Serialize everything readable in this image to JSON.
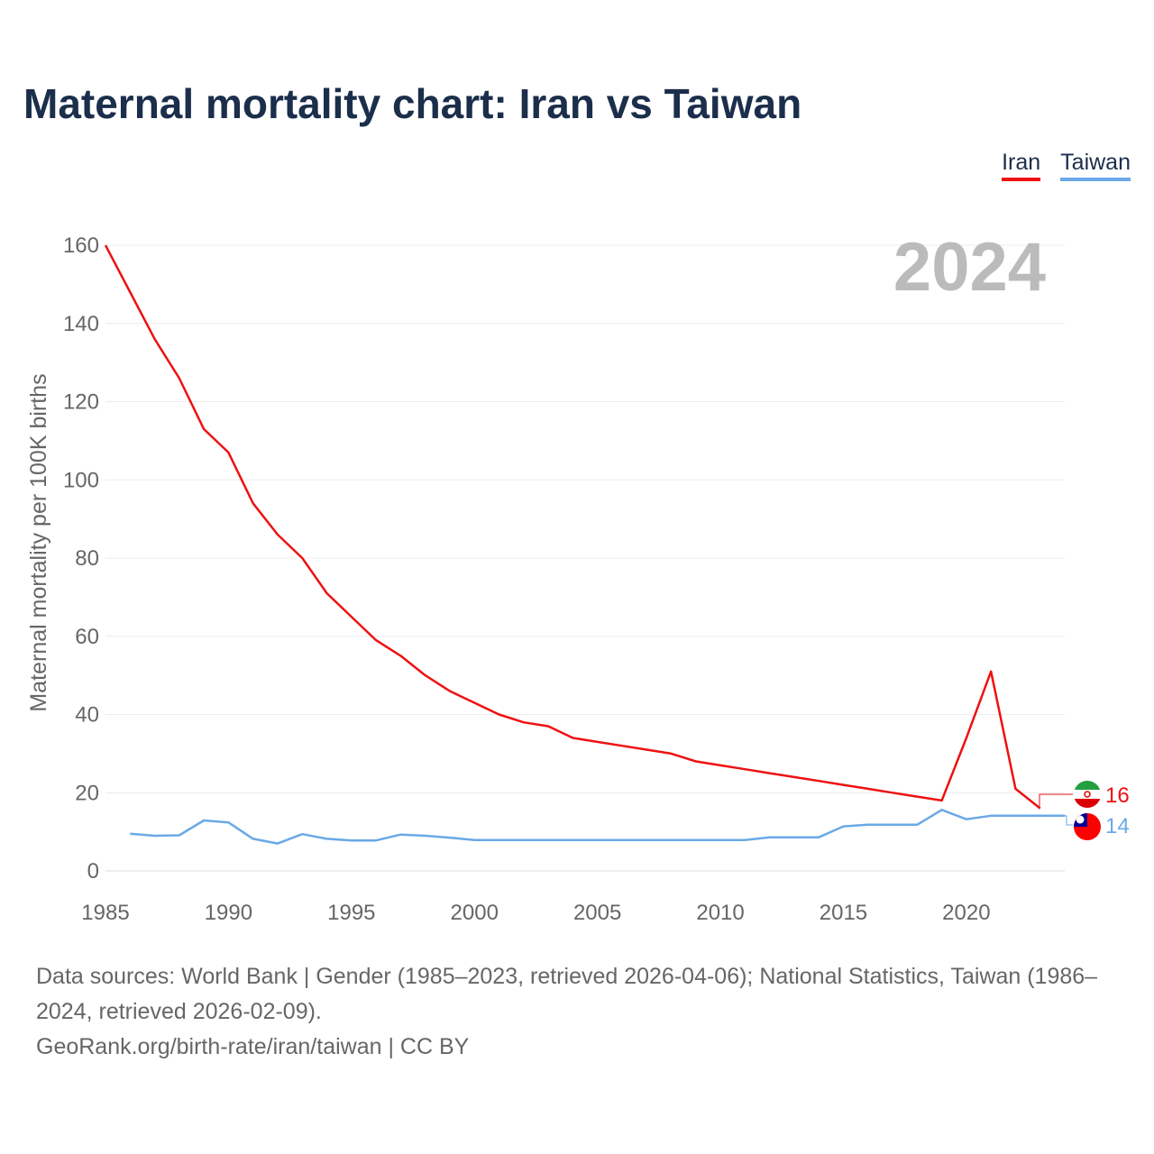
{
  "title": "Maternal mortality chart: Iran vs Taiwan",
  "legend": [
    {
      "name": "Iran",
      "color": "#ee1111"
    },
    {
      "name": "Taiwan",
      "color": "#6aa9e6"
    }
  ],
  "footer": {
    "sources": "Data sources: World Bank | Gender (1985–2023, retrieved 2026-04-06); National Statistics, Taiwan (1986–2024, retrieved 2026-02-09).",
    "credit": "GeoRank.org/birth-rate/iran/taiwan | CC BY"
  },
  "chart_data": {
    "type": "line",
    "title": "Maternal mortality chart: Iran vs Taiwan",
    "ylabel": "Maternal mortality per 100K births",
    "xlabel": "",
    "watermark_year": "2024",
    "xlim": [
      1985,
      2024
    ],
    "ylim": [
      0,
      160
    ],
    "xticks": [
      1985,
      1990,
      1995,
      2000,
      2005,
      2010,
      2015,
      2020
    ],
    "yticks": [
      0,
      20,
      40,
      60,
      80,
      100,
      120,
      140,
      160
    ],
    "grid": true,
    "legend_position": "top-right",
    "series": [
      {
        "name": "Iran",
        "color": "#ee1111",
        "end_label": "16",
        "flag_icon": "iran-flag-icon",
        "x": [
          1985,
          1986,
          1987,
          1988,
          1989,
          1990,
          1991,
          1992,
          1993,
          1994,
          1995,
          1996,
          1997,
          1998,
          1999,
          2000,
          2001,
          2002,
          2003,
          2004,
          2005,
          2006,
          2007,
          2008,
          2009,
          2010,
          2011,
          2012,
          2013,
          2014,
          2015,
          2016,
          2017,
          2018,
          2019,
          2020,
          2021,
          2022,
          2023
        ],
        "values": [
          160,
          148,
          136,
          126,
          113,
          107,
          94,
          86,
          80,
          71,
          65,
          59,
          55,
          50,
          46,
          43,
          40,
          38,
          37,
          34,
          33,
          32,
          31,
          30,
          28,
          27,
          26,
          25,
          24,
          23,
          22,
          21,
          20,
          19,
          18,
          34,
          51,
          21,
          16
        ]
      },
      {
        "name": "Taiwan",
        "color": "#6aa9e6",
        "end_label": "14",
        "flag_icon": "taiwan-flag-icon",
        "x": [
          1986,
          1987,
          1988,
          1989,
          1990,
          1991,
          1992,
          1993,
          1994,
          1995,
          1996,
          1997,
          1998,
          1999,
          2000,
          2001,
          2002,
          2003,
          2004,
          2005,
          2006,
          2007,
          2008,
          2009,
          2010,
          2011,
          2012,
          2013,
          2014,
          2015,
          2016,
          2017,
          2018,
          2019,
          2020,
          2021,
          2022,
          2023,
          2024
        ],
        "values": [
          9.5,
          9,
          9.1,
          12.9,
          12.4,
          8.2,
          7,
          9.4,
          8.2,
          7.8,
          7.8,
          9.3,
          9,
          8.5,
          7.9,
          7.9,
          7.9,
          7.9,
          7.9,
          7.9,
          7.9,
          7.9,
          7.9,
          7.9,
          7.9,
          7.9,
          8.6,
          8.6,
          8.6,
          11.4,
          11.8,
          11.8,
          11.8,
          15.6,
          13.2,
          14.1,
          14.1,
          14.1,
          14.1
        ]
      }
    ]
  }
}
